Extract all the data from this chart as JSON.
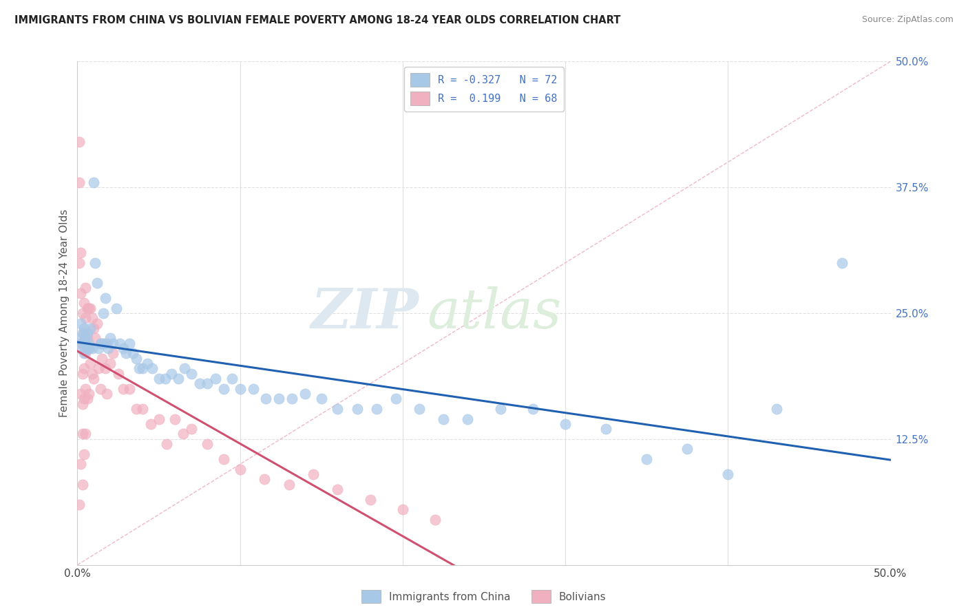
{
  "title": "IMMIGRANTS FROM CHINA VS BOLIVIAN FEMALE POVERTY AMONG 18-24 YEAR OLDS CORRELATION CHART",
  "source": "Source: ZipAtlas.com",
  "ylabel": "Female Poverty Among 18-24 Year Olds",
  "right_yticks": [
    "50.0%",
    "37.5%",
    "25.0%",
    "12.5%"
  ],
  "right_ytick_vals": [
    0.5,
    0.375,
    0.25,
    0.125
  ],
  "legend_label_1": "R = -0.327   N = 72",
  "legend_label_2": "R =  0.199   N = 68",
  "legend_entry_1": "Immigrants from China",
  "legend_entry_2": "Bolivians",
  "color_china": "#a8c8e8",
  "color_bolivia": "#f0b0c0",
  "color_china_line": "#2060b0",
  "color_bolivia_line": "#d05070",
  "color_diag": "#d8d8d8",
  "color_grid": "#e0e0e0",
  "xmin": 0.0,
  "xmax": 0.5,
  "ymin": 0.0,
  "ymax": 0.5,
  "china_x": [
    0.001,
    0.002,
    0.002,
    0.003,
    0.003,
    0.004,
    0.004,
    0.005,
    0.005,
    0.006,
    0.006,
    0.007,
    0.007,
    0.008,
    0.009,
    0.01,
    0.011,
    0.012,
    0.013,
    0.014,
    0.015,
    0.016,
    0.017,
    0.018,
    0.019,
    0.02,
    0.022,
    0.024,
    0.026,
    0.028,
    0.03,
    0.032,
    0.034,
    0.036,
    0.038,
    0.04,
    0.043,
    0.046,
    0.05,
    0.054,
    0.058,
    0.062,
    0.066,
    0.07,
    0.075,
    0.08,
    0.085,
    0.09,
    0.095,
    0.1,
    0.108,
    0.116,
    0.124,
    0.132,
    0.14,
    0.15,
    0.16,
    0.172,
    0.184,
    0.196,
    0.21,
    0.225,
    0.24,
    0.26,
    0.28,
    0.3,
    0.325,
    0.35,
    0.375,
    0.4,
    0.43,
    0.47
  ],
  "china_y": [
    0.225,
    0.24,
    0.215,
    0.23,
    0.22,
    0.235,
    0.21,
    0.225,
    0.22,
    0.23,
    0.215,
    0.22,
    0.215,
    0.235,
    0.215,
    0.38,
    0.3,
    0.28,
    0.215,
    0.22,
    0.22,
    0.25,
    0.265,
    0.22,
    0.215,
    0.225,
    0.22,
    0.255,
    0.22,
    0.215,
    0.21,
    0.22,
    0.21,
    0.205,
    0.195,
    0.195,
    0.2,
    0.195,
    0.185,
    0.185,
    0.19,
    0.185,
    0.195,
    0.19,
    0.18,
    0.18,
    0.185,
    0.175,
    0.185,
    0.175,
    0.175,
    0.165,
    0.165,
    0.165,
    0.17,
    0.165,
    0.155,
    0.155,
    0.155,
    0.165,
    0.155,
    0.145,
    0.145,
    0.155,
    0.155,
    0.14,
    0.135,
    0.105,
    0.115,
    0.09,
    0.155,
    0.3
  ],
  "bolivia_x": [
    0.001,
    0.001,
    0.001,
    0.001,
    0.002,
    0.002,
    0.002,
    0.002,
    0.002,
    0.003,
    0.003,
    0.003,
    0.003,
    0.003,
    0.003,
    0.004,
    0.004,
    0.004,
    0.004,
    0.004,
    0.005,
    0.005,
    0.005,
    0.005,
    0.005,
    0.006,
    0.006,
    0.006,
    0.007,
    0.007,
    0.007,
    0.008,
    0.008,
    0.009,
    0.009,
    0.01,
    0.01,
    0.011,
    0.012,
    0.013,
    0.014,
    0.015,
    0.016,
    0.017,
    0.018,
    0.02,
    0.022,
    0.025,
    0.028,
    0.032,
    0.036,
    0.04,
    0.045,
    0.05,
    0.055,
    0.06,
    0.065,
    0.07,
    0.08,
    0.09,
    0.1,
    0.115,
    0.13,
    0.145,
    0.16,
    0.18,
    0.2,
    0.22
  ],
  "bolivia_y": [
    0.42,
    0.38,
    0.3,
    0.06,
    0.31,
    0.27,
    0.22,
    0.17,
    0.1,
    0.25,
    0.22,
    0.19,
    0.16,
    0.13,
    0.08,
    0.26,
    0.23,
    0.195,
    0.165,
    0.11,
    0.275,
    0.245,
    0.21,
    0.175,
    0.13,
    0.255,
    0.225,
    0.165,
    0.255,
    0.215,
    0.17,
    0.255,
    0.2,
    0.245,
    0.19,
    0.235,
    0.185,
    0.225,
    0.24,
    0.195,
    0.175,
    0.205,
    0.22,
    0.195,
    0.17,
    0.2,
    0.21,
    0.19,
    0.175,
    0.175,
    0.155,
    0.155,
    0.14,
    0.145,
    0.12,
    0.145,
    0.13,
    0.135,
    0.12,
    0.105,
    0.095,
    0.085,
    0.08,
    0.09,
    0.075,
    0.065,
    0.055,
    0.045
  ],
  "watermark_zip": "ZIP",
  "watermark_atlas": "atlas",
  "background_color": "#ffffff"
}
